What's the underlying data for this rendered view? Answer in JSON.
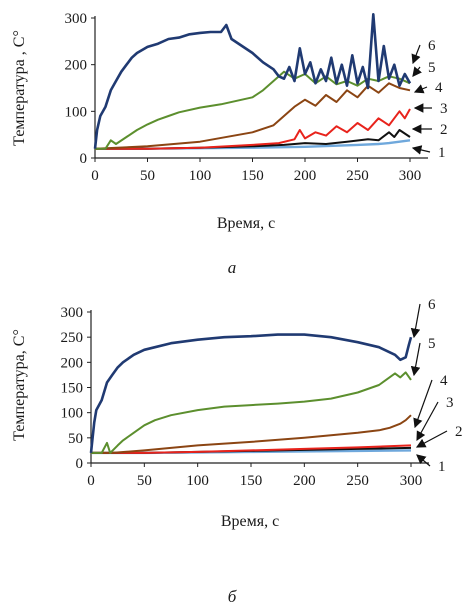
{
  "colors": {
    "s1": "#6fa8dc",
    "s2": "#111111",
    "s3": "#e8231c",
    "s4": "#8b4513",
    "s5": "#5c8f2e",
    "s6": "#203a72",
    "arrow": "#111111"
  },
  "chart_data": [
    {
      "type": "line",
      "caption": "а",
      "xlabel": "Время, с",
      "ylabel": "Температура , С°",
      "xlim": [
        0,
        300
      ],
      "ylim": [
        0,
        300
      ],
      "xticks": [
        "0",
        "50",
        "100",
        "150",
        "200",
        "250",
        "300"
      ],
      "yticks": [
        "0",
        "100",
        "200",
        "300"
      ],
      "series": [
        {
          "name": "1",
          "x": [
            0,
            50,
            100,
            150,
            200,
            250,
            270,
            280,
            290,
            300
          ],
          "y": [
            20,
            20,
            21,
            22,
            24,
            28,
            30,
            32,
            35,
            38
          ]
        },
        {
          "name": "2",
          "x": [
            0,
            50,
            100,
            150,
            180,
            200,
            220,
            240,
            260,
            270,
            280,
            285,
            290,
            300
          ],
          "y": [
            20,
            20,
            22,
            25,
            28,
            32,
            30,
            35,
            40,
            38,
            55,
            45,
            60,
            45
          ]
        },
        {
          "name": "3",
          "x": [
            0,
            50,
            100,
            150,
            175,
            190,
            195,
            200,
            210,
            220,
            230,
            240,
            250,
            260,
            270,
            280,
            290,
            295,
            300
          ],
          "y": [
            20,
            20,
            22,
            28,
            32,
            40,
            60,
            42,
            55,
            48,
            68,
            55,
            75,
            60,
            85,
            70,
            100,
            85,
            105
          ]
        },
        {
          "name": "4",
          "x": [
            0,
            50,
            100,
            150,
            170,
            180,
            190,
            200,
            210,
            220,
            230,
            240,
            250,
            260,
            270,
            280,
            290,
            300
          ],
          "y": [
            20,
            25,
            35,
            55,
            70,
            90,
            110,
            125,
            112,
            135,
            120,
            145,
            130,
            155,
            140,
            160,
            150,
            145
          ]
        },
        {
          "name": "5",
          "x": [
            0,
            10,
            15,
            20,
            30,
            40,
            50,
            60,
            70,
            80,
            100,
            120,
            150,
            160,
            170,
            180,
            190,
            200,
            210,
            220,
            230,
            240,
            250,
            260,
            270,
            280,
            290,
            300
          ],
          "y": [
            20,
            20,
            38,
            30,
            45,
            60,
            72,
            82,
            90,
            98,
            108,
            115,
            130,
            145,
            165,
            185,
            170,
            180,
            160,
            175,
            158,
            165,
            155,
            170,
            165,
            175,
            170,
            160
          ]
        },
        {
          "name": "6",
          "x": [
            0,
            2,
            5,
            10,
            15,
            20,
            25,
            30,
            35,
            40,
            50,
            60,
            70,
            80,
            90,
            100,
            110,
            120,
            125,
            130,
            140,
            150,
            160,
            170,
            175,
            180,
            185,
            190,
            195,
            200,
            205,
            210,
            215,
            220,
            225,
            230,
            235,
            240,
            245,
            250,
            255,
            260,
            265,
            270,
            275,
            280,
            285,
            290,
            295,
            300
          ],
          "y": [
            20,
            60,
            90,
            110,
            145,
            165,
            185,
            200,
            215,
            225,
            238,
            245,
            255,
            258,
            265,
            268,
            270,
            270,
            285,
            255,
            240,
            225,
            205,
            190,
            175,
            170,
            195,
            165,
            235,
            180,
            205,
            160,
            190,
            165,
            215,
            160,
            200,
            155,
            220,
            160,
            195,
            150,
            320,
            165,
            240,
            170,
            200,
            155,
            180,
            160
          ]
        }
      ]
    },
    {
      "type": "line",
      "caption": "б",
      "xlabel": "Время, с",
      "ylabel": "Температура, С°",
      "xlim": [
        0,
        300
      ],
      "ylim": [
        0,
        300
      ],
      "xticks": [
        "0",
        "50",
        "100",
        "150",
        "200",
        "250",
        "300"
      ],
      "yticks": [
        "0",
        "50",
        "100",
        "150",
        "200",
        "250",
        "300"
      ],
      "series": [
        {
          "name": "1",
          "x": [
            0,
            50,
            100,
            150,
            200,
            250,
            300
          ],
          "y": [
            20,
            20,
            21,
            22,
            23,
            24,
            25
          ]
        },
        {
          "name": "2",
          "x": [
            0,
            50,
            100,
            150,
            200,
            250,
            300
          ],
          "y": [
            20,
            20,
            22,
            24,
            26,
            28,
            30
          ]
        },
        {
          "name": "3",
          "x": [
            0,
            50,
            100,
            150,
            200,
            250,
            300
          ],
          "y": [
            20,
            20,
            22,
            25,
            28,
            31,
            35
          ]
        },
        {
          "name": "4",
          "x": [
            0,
            20,
            50,
            100,
            150,
            200,
            250,
            270,
            280,
            290,
            295,
            300
          ],
          "y": [
            20,
            20,
            25,
            35,
            42,
            50,
            60,
            65,
            70,
            78,
            85,
            95
          ]
        },
        {
          "name": "5",
          "x": [
            0,
            10,
            15,
            18,
            25,
            30,
            40,
            50,
            60,
            75,
            100,
            125,
            150,
            175,
            200,
            225,
            250,
            270,
            285,
            290,
            295,
            300
          ],
          "y": [
            20,
            20,
            40,
            20,
            35,
            45,
            60,
            75,
            85,
            95,
            105,
            112,
            115,
            118,
            122,
            128,
            140,
            155,
            178,
            170,
            180,
            165
          ]
        },
        {
          "name": "6",
          "x": [
            0,
            3,
            5,
            10,
            15,
            20,
            25,
            30,
            40,
            50,
            60,
            75,
            100,
            125,
            150,
            175,
            200,
            225,
            250,
            270,
            280,
            285,
            290,
            295,
            298,
            300
          ],
          "y": [
            20,
            80,
            105,
            125,
            160,
            175,
            190,
            200,
            215,
            225,
            230,
            238,
            245,
            250,
            252,
            255,
            255,
            250,
            240,
            230,
            220,
            215,
            205,
            210,
            235,
            250
          ]
        }
      ]
    }
  ]
}
